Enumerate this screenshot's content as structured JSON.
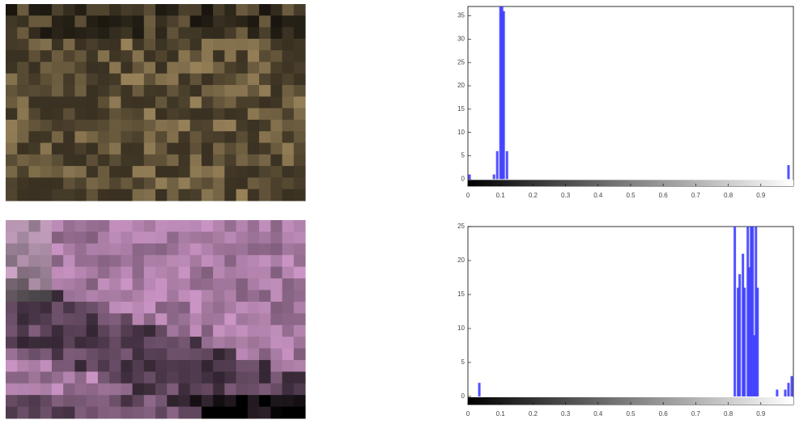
{
  "chart_data": [
    {
      "type": "bar",
      "color": "#3333ff",
      "x": [
        0.005,
        0.08,
        0.09,
        0.1,
        0.105,
        0.11,
        0.12,
        0.985
      ],
      "values": [
        1,
        1,
        6,
        37,
        37,
        36,
        6,
        3
      ],
      "xlim": [
        0,
        1
      ],
      "ylim": [
        -1.5,
        37
      ],
      "xticks": [
        0,
        0.1,
        0.2,
        0.3,
        0.4,
        0.5,
        0.6,
        0.7,
        0.8,
        0.9
      ],
      "yticks": [
        0,
        5,
        10,
        15,
        20,
        25,
        30,
        35
      ]
    },
    {
      "type": "bar",
      "color": "#3333ff",
      "x": [
        0.035,
        0.82,
        0.83,
        0.835,
        0.845,
        0.85,
        0.86,
        0.865,
        0.87,
        0.875,
        0.88,
        0.885,
        0.89,
        0.95,
        0.975,
        0.985,
        0.995
      ],
      "values": [
        2,
        25,
        16,
        18,
        21,
        16,
        25,
        19,
        25,
        25,
        9,
        25,
        16,
        1,
        1,
        2,
        3
      ],
      "xlim": [
        0,
        1
      ],
      "ylim": [
        -1.2,
        25
      ],
      "xticks": [
        0,
        0.1,
        0.2,
        0.3,
        0.4,
        0.5,
        0.6,
        0.7,
        0.8,
        0.9
      ],
      "yticks": [
        0,
        5,
        10,
        15,
        20,
        25
      ]
    }
  ]
}
